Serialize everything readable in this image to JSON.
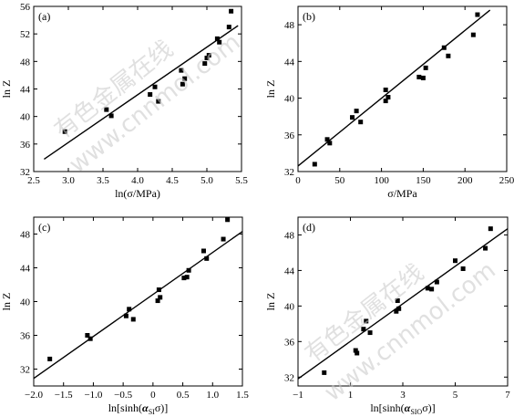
{
  "watermark": {
    "text_cn": "有色金属在线",
    "text_url": "www.cnnmol.com"
  },
  "chart_data": [
    {
      "type": "scatter",
      "panel_label": "(a)",
      "xlabel": "ln(σ/MPa)",
      "ylabel": "ln Z",
      "xlim": [
        2.5,
        5.5
      ],
      "ylim": [
        32,
        56
      ],
      "xticks": [
        2.5,
        3.0,
        3.5,
        4.0,
        4.5,
        5.0,
        5.5
      ],
      "xtick_labels": [
        "2.5",
        "3.0",
        "3.5",
        "4.0",
        "4.5",
        "5.0",
        "5.5"
      ],
      "yticks": [
        32,
        36,
        40,
        44,
        48,
        52,
        56
      ],
      "ytick_labels": [
        "32",
        "36",
        "40",
        "44",
        "48",
        "52",
        "56"
      ],
      "points": [
        [
          2.95,
          37.8
        ],
        [
          3.55,
          41.0
        ],
        [
          3.62,
          40.1
        ],
        [
          4.18,
          43.2
        ],
        [
          4.25,
          44.3
        ],
        [
          4.3,
          42.2
        ],
        [
          4.63,
          46.7
        ],
        [
          4.65,
          44.7
        ],
        [
          4.68,
          45.5
        ],
        [
          4.97,
          47.7
        ],
        [
          5.0,
          48.5
        ],
        [
          5.03,
          48.9
        ],
        [
          5.15,
          51.3
        ],
        [
          5.18,
          50.8
        ],
        [
          5.32,
          53.0
        ],
        [
          5.35,
          55.3
        ]
      ],
      "fit_line": [
        [
          2.65,
          33.8
        ],
        [
          5.45,
          53.2
        ]
      ]
    },
    {
      "type": "scatter",
      "panel_label": "(b)",
      "xlabel": "σ/MPa",
      "ylabel": "ln Z",
      "xlim": [
        0,
        250
      ],
      "ylim": [
        32,
        50
      ],
      "xticks": [
        0,
        50,
        100,
        150,
        200,
        250
      ],
      "xtick_labels": [
        "0",
        "50",
        "100",
        "150",
        "200",
        "250"
      ],
      "yticks": [
        32,
        36,
        40,
        44,
        48
      ],
      "ytick_labels": [
        "32",
        "36",
        "40",
        "44",
        "48"
      ],
      "points": [
        [
          20,
          32.8
        ],
        [
          35,
          35.5
        ],
        [
          38,
          35.1
        ],
        [
          65,
          37.9
        ],
        [
          70,
          38.6
        ],
        [
          75,
          37.4
        ],
        [
          105,
          39.7
        ],
        [
          105,
          40.9
        ],
        [
          108,
          40.1
        ],
        [
          145,
          42.3
        ],
        [
          150,
          42.2
        ],
        [
          153,
          43.3
        ],
        [
          175,
          45.5
        ],
        [
          180,
          44.6
        ],
        [
          210,
          46.9
        ],
        [
          215,
          49.1
        ]
      ],
      "fit_line": [
        [
          0,
          32.6
        ],
        [
          230,
          49.6
        ]
      ]
    },
    {
      "type": "scatter",
      "panel_label": "(c)",
      "xlabel": "ln[sinh(αSIσ)]",
      "ylabel": "ln Z",
      "xlim": [
        -2.0,
        1.5
      ],
      "ylim": [
        30,
        50
      ],
      "xticks": [
        -2.0,
        -1.5,
        -1.0,
        -0.5,
        0,
        0.5,
        1.0,
        1.5
      ],
      "xtick_labels": [
        "−2.0",
        "−1.5",
        "−1.0",
        "−0.5",
        "0",
        "0.5",
        "1.0",
        "1.5"
      ],
      "yticks": [
        32,
        36,
        40,
        44,
        48
      ],
      "ytick_labels": [
        "32",
        "36",
        "40",
        "44",
        "48"
      ],
      "points": [
        [
          -1.73,
          33.2
        ],
        [
          -1.1,
          36.0
        ],
        [
          -1.05,
          35.6
        ],
        [
          -0.45,
          38.3
        ],
        [
          -0.4,
          39.1
        ],
        [
          -0.33,
          37.9
        ],
        [
          0.08,
          40.1
        ],
        [
          0.1,
          41.4
        ],
        [
          0.12,
          40.5
        ],
        [
          0.52,
          42.8
        ],
        [
          0.57,
          42.9
        ],
        [
          0.6,
          43.7
        ],
        [
          0.85,
          46.0
        ],
        [
          0.9,
          45.1
        ],
        [
          1.18,
          47.4
        ],
        [
          1.25,
          49.7
        ]
      ],
      "fit_line": [
        [
          -2.0,
          30.9
        ],
        [
          1.5,
          48.3
        ]
      ]
    },
    {
      "type": "scatter",
      "panel_label": "(d)",
      "xlabel": "ln[sinh(αSIOσ)]",
      "ylabel": "ln Z",
      "xlim": [
        -1,
        7
      ],
      "ylim": [
        31,
        50
      ],
      "xticks": [
        -1,
        1,
        3,
        5,
        7
      ],
      "xtick_labels": [
        "−1",
        "1",
        "3",
        "5",
        "7"
      ],
      "yticks": [
        32,
        36,
        40,
        44,
        48
      ],
      "ytick_labels": [
        "32",
        "36",
        "40",
        "44",
        "48"
      ],
      "points": [
        [
          0.0,
          32.5
        ],
        [
          1.2,
          35.0
        ],
        [
          1.25,
          34.7
        ],
        [
          1.5,
          37.4
        ],
        [
          1.6,
          38.3
        ],
        [
          1.75,
          37.0
        ],
        [
          2.75,
          39.4
        ],
        [
          2.8,
          40.6
        ],
        [
          2.85,
          39.7
        ],
        [
          3.95,
          42.0
        ],
        [
          4.1,
          41.9
        ],
        [
          4.3,
          42.7
        ],
        [
          5.0,
          45.1
        ],
        [
          5.3,
          44.2
        ],
        [
          6.15,
          46.5
        ],
        [
          6.35,
          48.7
        ]
      ],
      "fit_line": [
        [
          -1,
          31.8
        ],
        [
          7,
          48.7
        ]
      ]
    }
  ]
}
